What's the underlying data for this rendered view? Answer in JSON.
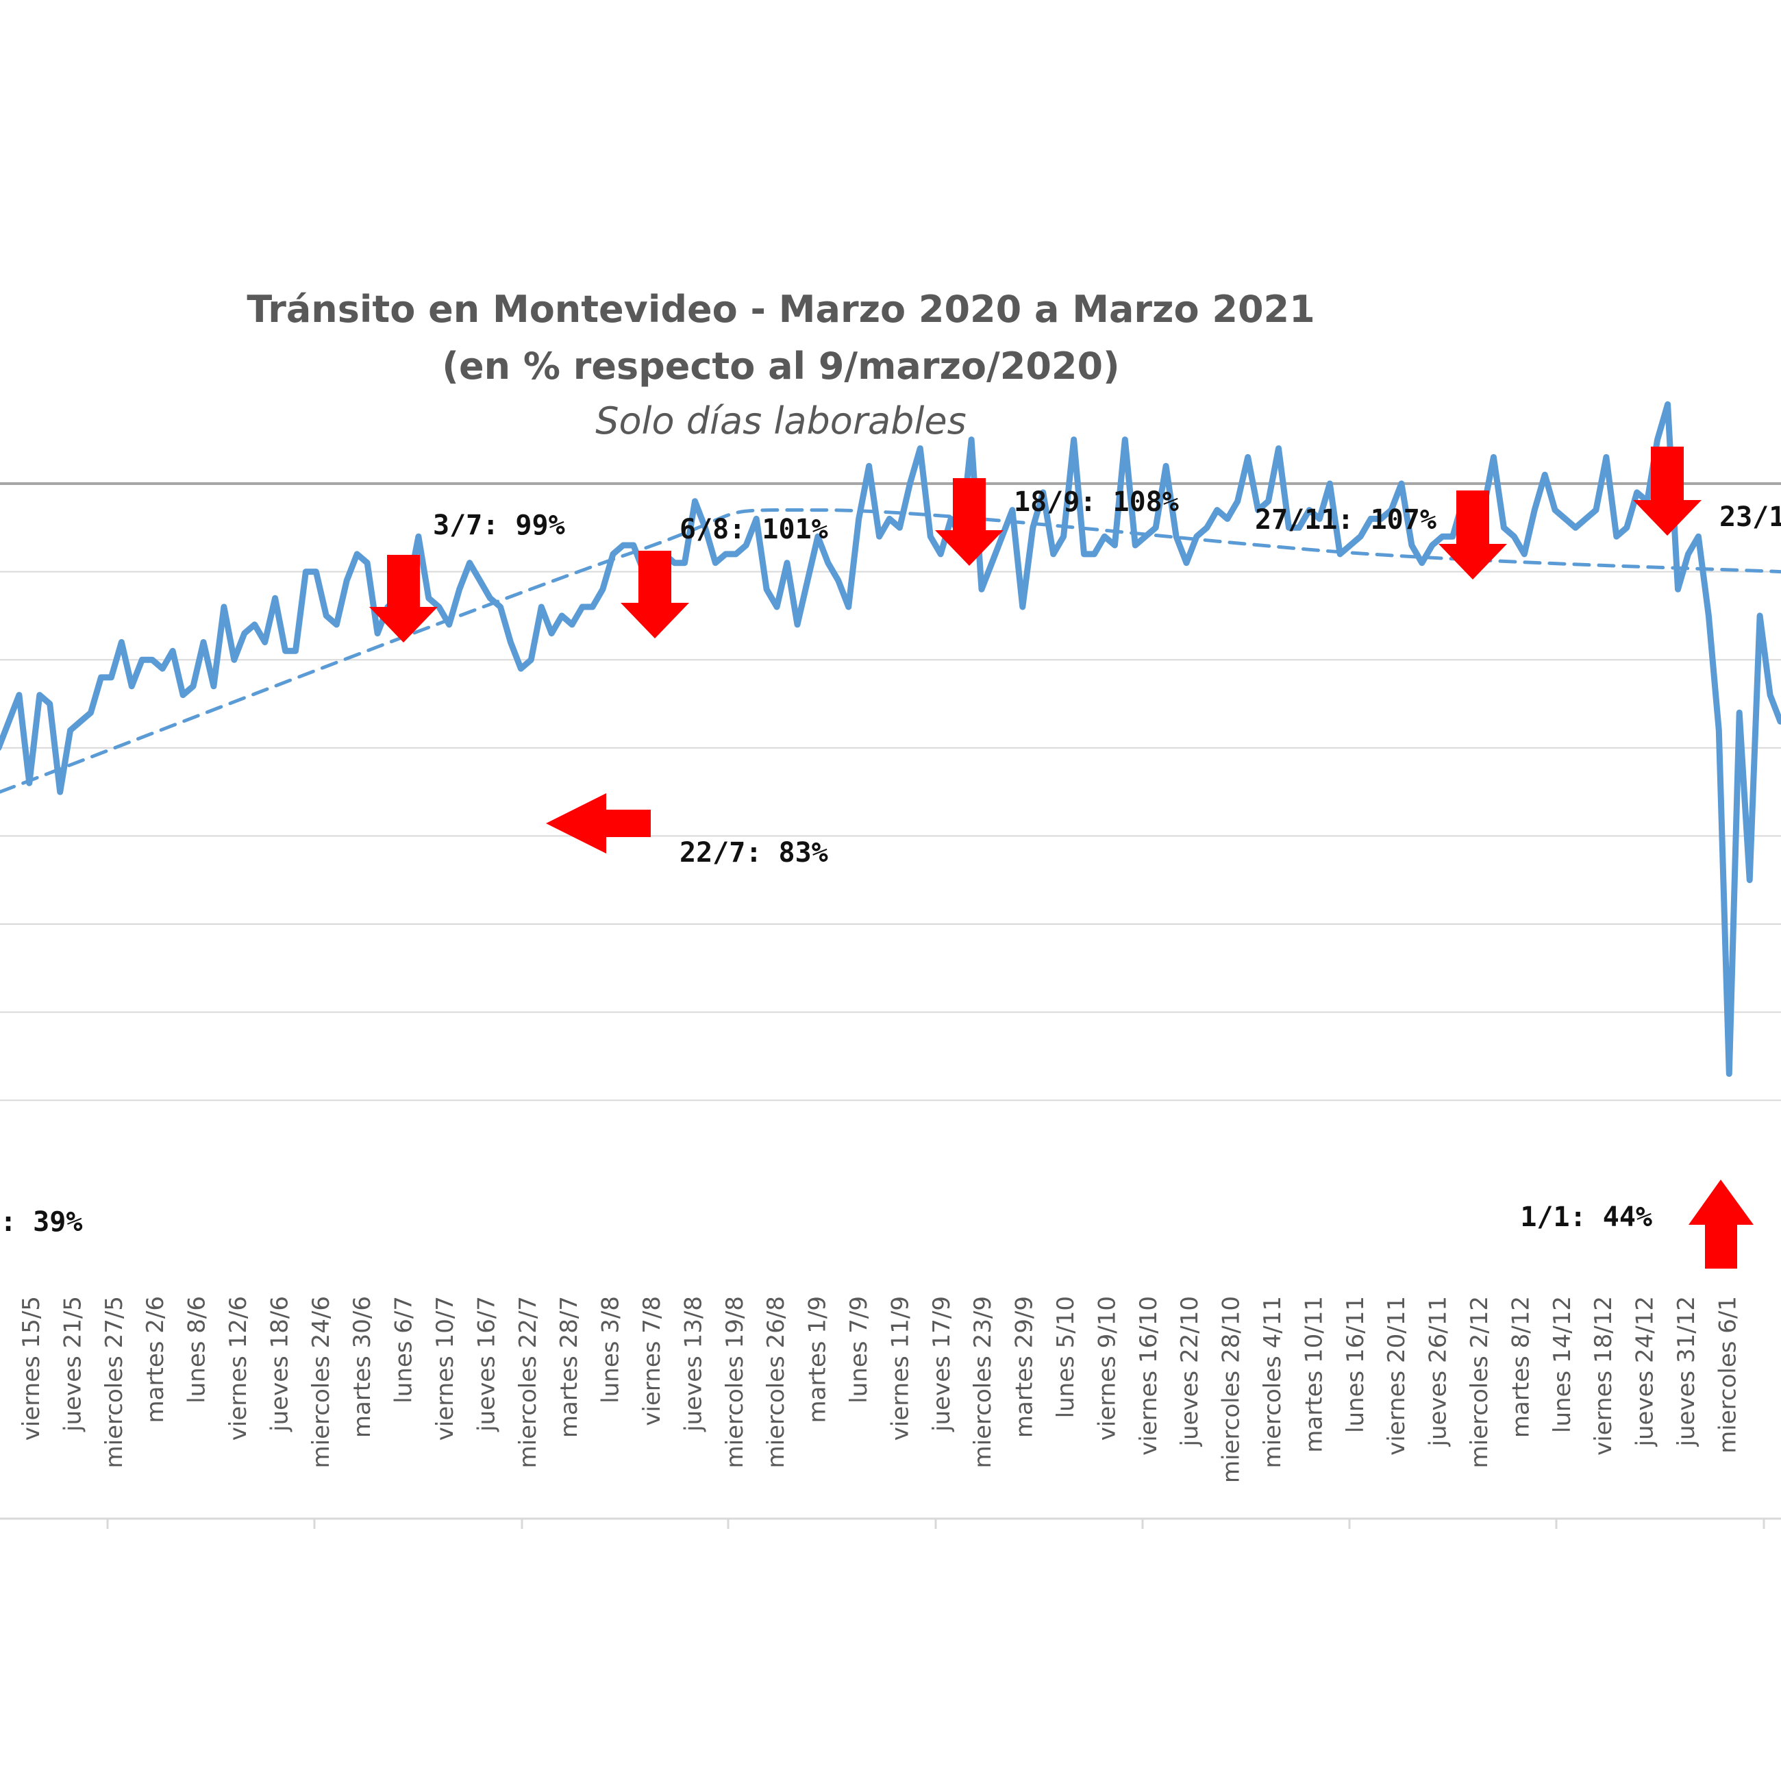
{
  "chart_data": {
    "type": "line",
    "title": "Tránsito en Montevideo - Marzo 2020 a Marzo 2021",
    "title_line2": "(en % respecto al 9/marzo/2020)",
    "subtitle": "Solo días laborables",
    "xlabel": "",
    "ylabel": "",
    "ylim": [
      40,
      110
    ],
    "grid": true,
    "x_tick_labels": [
      "viernes 15/5",
      "jueves 21/5",
      "miercoles 27/5",
      "martes 2/6",
      "lunes 8/6",
      "viernes 12/6",
      "jueves 18/6",
      "miercoles 24/6",
      "martes 30/6",
      "lunes 6/7",
      "viernes 10/7",
      "jueves 16/7",
      "miercoles 22/7",
      "martes 28/7",
      "lunes 3/8",
      "viernes 7/8",
      "jueves 13/8",
      "miercoles 19/8",
      "miercoles 26/8",
      "martes 1/9",
      "lunes 7/9",
      "viernes 11/9",
      "jueves 17/9",
      "miercoles 23/9",
      "martes 29/9",
      "lunes 5/10",
      "viernes 9/10",
      "viernes 16/10",
      "jueves 22/10",
      "miercoles 28/10",
      "miercoles 4/11",
      "martes 10/11",
      "lunes 16/11",
      "viernes 20/11",
      "jueves 26/11",
      "miercoles 2/12",
      "martes 8/12",
      "lunes 14/12",
      "viernes 18/12",
      "jueves 24/12",
      "jueves 31/12",
      "miercoles 6/1"
    ],
    "series": [
      {
        "style": "solid",
        "color": "#5B9BD5",
        "values": [
          80,
          83,
          86,
          76,
          86,
          85,
          75,
          82,
          83,
          84,
          88,
          88,
          92,
          87,
          90,
          90,
          89,
          91,
          86,
          87,
          92,
          87,
          96,
          90,
          93,
          94,
          92,
          97,
          91,
          91,
          100,
          100,
          95,
          94,
          99,
          102,
          101,
          93,
          96,
          97,
          98,
          104,
          97,
          96,
          94,
          98,
          101,
          99,
          97,
          96,
          92,
          89,
          90,
          96,
          93,
          95,
          94,
          96,
          96,
          98,
          102,
          103,
          103,
          100,
          100,
          102,
          101,
          101,
          108,
          105,
          101,
          102,
          102,
          103,
          106,
          98,
          96,
          101,
          94,
          99,
          104,
          101,
          99,
          96,
          106,
          112,
          104,
          106,
          105,
          110,
          114,
          104,
          102,
          106,
          104,
          115,
          98,
          101,
          104,
          107,
          96,
          105,
          109,
          102,
          104,
          115,
          102,
          102,
          104,
          103,
          115,
          103,
          104,
          105,
          112,
          104,
          101,
          104,
          105,
          107,
          106,
          108,
          113,
          107,
          108,
          114,
          105,
          105,
          107,
          106,
          110,
          102,
          103,
          104,
          106,
          106,
          107,
          110,
          103,
          101,
          103,
          104,
          104,
          108,
          106,
          107,
          113,
          105,
          104,
          102,
          107,
          111,
          107,
          106,
          105,
          106,
          107,
          113,
          104,
          105,
          109,
          108,
          115,
          119,
          98,
          102,
          104,
          95,
          82,
          43,
          84,
          65,
          95,
          86,
          83
        ]
      },
      {
        "style": "dashed",
        "color": "#5B9BD5",
        "values": [
          75,
          102,
          107,
          102,
          100
        ]
      }
    ],
    "annotations": [
      {
        "text": "3/7: 99%",
        "arrow": "down"
      },
      {
        "text": "6/8: 101%",
        "arrow": "down"
      },
      {
        "text": "18/9: 108%",
        "arrow": "down"
      },
      {
        "text": "27/11: 107%",
        "arrow": "down"
      },
      {
        "text": "23/1",
        "arrow": "down"
      },
      {
        "text": "22/7: 83%",
        "arrow": "left"
      },
      {
        "text": "1/1: 44%",
        "arrow": "up"
      },
      {
        "text": ": 39%",
        "arrow": "none"
      }
    ],
    "arrow_color": "#FF0000"
  }
}
